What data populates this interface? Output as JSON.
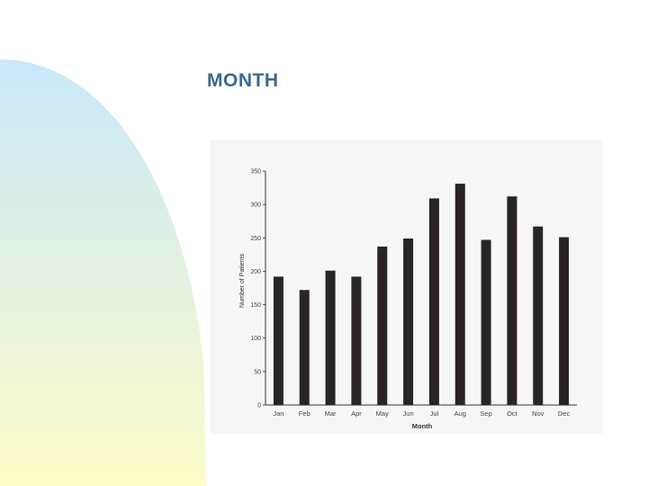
{
  "slide": {
    "title": "MONTH",
    "background_gradient": [
      "#c9e8fa",
      "#fdfcc8"
    ]
  },
  "chart_data": {
    "type": "bar",
    "categories": [
      "Jan",
      "Feb",
      "Mar",
      "Apr",
      "May",
      "Jun",
      "Jul",
      "Aug",
      "Sep",
      "Oct",
      "Nov",
      "Dec"
    ],
    "values": [
      192,
      172,
      201,
      192,
      237,
      249,
      309,
      331,
      247,
      312,
      267,
      251
    ],
    "xlabel": "Month",
    "ylabel": "Number of Patients",
    "ylim": [
      0,
      350
    ],
    "yticks": [
      0,
      50,
      100,
      150,
      200,
      250,
      300,
      350
    ],
    "grid": false,
    "bar_color": "#2a2428"
  }
}
